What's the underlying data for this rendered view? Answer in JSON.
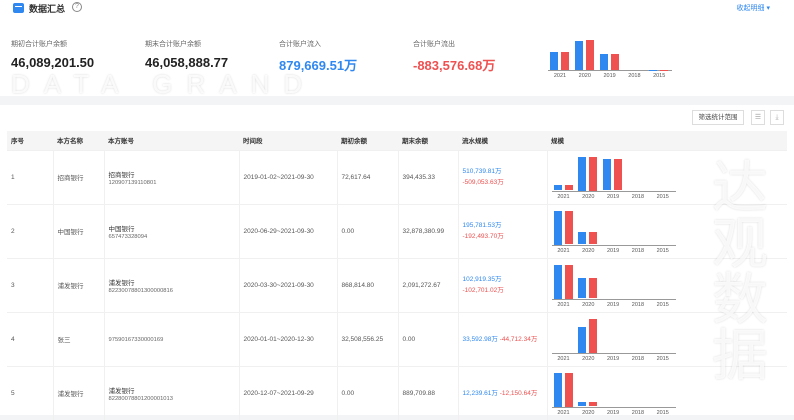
{
  "header": {
    "title": "数据汇总",
    "collapse_label": "收起明细 ▾"
  },
  "stats": [
    {
      "label": "期初合计账户余额",
      "value": "46,089,201.50"
    },
    {
      "label": "期末合计账户余额",
      "value": "46,058,888.77"
    },
    {
      "label": "合计账户流入",
      "value": "879,669.51万"
    },
    {
      "label": "合计账户流出",
      "value": "-883,576.68万"
    }
  ],
  "colors": {
    "inflow": "#2f88f0",
    "outflow": "#ee5150"
  },
  "chart_data": [
    {
      "type": "bar",
      "categories": [
        "2021",
        "2020",
        "2019",
        "2018",
        "2015"
      ],
      "series": [
        {
          "values": [
            0.55,
            0.9,
            0.5,
            0,
            0.01
          ]
        },
        {
          "values": [
            0.55,
            0.94,
            0.5,
            0,
            0.01
          ]
        }
      ]
    },
    {
      "type": "bar",
      "categories": [
        "2021",
        "2020",
        "2019",
        "2018",
        "2015"
      ],
      "series": [
        {
          "values": [
            0.17,
            1.0,
            0.93,
            0,
            0
          ]
        },
        {
          "values": [
            0.17,
            1.0,
            0.92,
            0,
            0
          ]
        }
      ]
    },
    {
      "type": "bar",
      "categories": [
        "2021",
        "2020",
        "2019",
        "2018",
        "2015"
      ],
      "series": [
        {
          "values": [
            1.0,
            0.38,
            0,
            0,
            0
          ]
        },
        {
          "values": [
            0.98,
            0.38,
            0,
            0,
            0
          ]
        }
      ]
    },
    {
      "type": "bar",
      "categories": [
        "2021",
        "2020",
        "2019",
        "2018",
        "2015"
      ],
      "series": [
        {
          "values": [
            1.0,
            0.6,
            0,
            0,
            0
          ]
        },
        {
          "values": [
            1.0,
            0.6,
            0,
            0,
            0
          ]
        }
      ]
    },
    {
      "type": "bar",
      "categories": [
        "2021",
        "2020",
        "2019",
        "2018",
        "2015"
      ],
      "series": [
        {
          "values": [
            0,
            0.75,
            0,
            0,
            0
          ]
        },
        {
          "values": [
            0,
            1.0,
            0,
            0,
            0
          ]
        }
      ]
    },
    {
      "type": "bar",
      "categories": [
        "2021",
        "2020",
        "2019",
        "2018",
        "2015"
      ],
      "series": [
        {
          "values": [
            1.0,
            0.13,
            0,
            0,
            0
          ]
        },
        {
          "values": [
            1.0,
            0.12,
            0,
            0,
            0
          ]
        }
      ]
    }
  ],
  "toolbar": {
    "filter_label": "筛选统计范围",
    "list_icon": "list-icon",
    "download_icon": "download-icon"
  },
  "table": {
    "headers": [
      "序号",
      "本方名称",
      "本方账号",
      "时间段",
      "期初余额",
      "期末余额",
      "流水规模",
      "规模"
    ],
    "rows": [
      {
        "no": "1",
        "name": "招商银行",
        "bank": "招商银行",
        "account": "120907139110801",
        "period": "2019-01-02~2021-09-30",
        "open": "72,617.64",
        "close": "394,435.33",
        "in": "510,739.81万",
        "out": "-509,053.63万"
      },
      {
        "no": "2",
        "name": "中国银行",
        "bank": "中国银行",
        "account": "657473328094",
        "period": "2020-06-29~2021-09-30",
        "open": "0.00",
        "close": "32,878,380.99",
        "in": "195,781.53万",
        "out": "-192,493.70万"
      },
      {
        "no": "3",
        "name": "浦发银行",
        "bank": "浦发银行",
        "account": "82230078801300000816",
        "period": "2020-03-30~2021-09-30",
        "open": "868,814.80",
        "close": "2,091,272.67",
        "in": "102,919.35万",
        "out": "-102,701.02万"
      },
      {
        "no": "4",
        "name": "张三",
        "bank": "",
        "account": "97590167330000169",
        "period": "2020-01-01~2020-12-30",
        "open": "32,508,556.25",
        "close": "0.00",
        "in": "33,592.98万",
        "out": "-44,712.34万"
      },
      {
        "no": "5",
        "name": "浦发银行",
        "bank": "浦发银行",
        "account": "82280078801200001013",
        "period": "2020-12-07~2021-09-29",
        "open": "0.00",
        "close": "889,709.88",
        "in": "12,239.61万",
        "out": "-12,150.64万"
      }
    ]
  },
  "watermark": {
    "cn": "达观数据",
    "en": "DATA GRAND"
  }
}
